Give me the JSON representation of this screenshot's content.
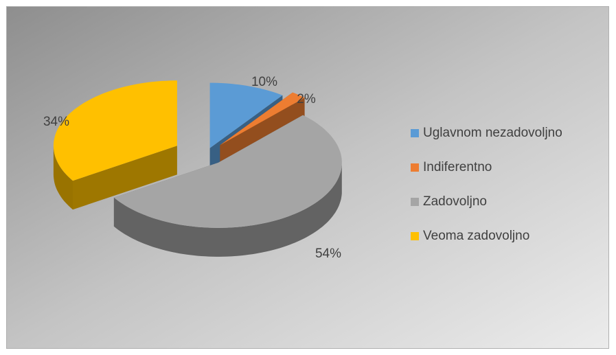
{
  "chart_data": {
    "type": "pie3d",
    "categories": [
      "Uglavnom nezadovoljno",
      "Indiferentno",
      "Zadovoljno",
      "Veoma zadovoljno"
    ],
    "values": [
      10,
      2,
      54,
      34
    ],
    "value_labels": [
      "10%",
      "2%",
      "54%",
      "34%"
    ],
    "colors": [
      "#5b9bd5",
      "#ed7d31",
      "#a5a5a5",
      "#ffc000"
    ],
    "legend": "right"
  }
}
